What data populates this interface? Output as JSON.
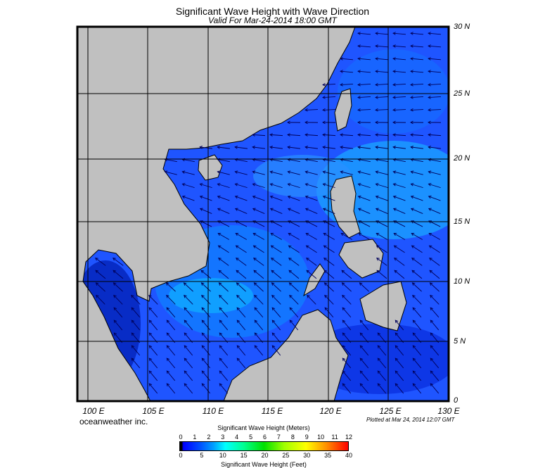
{
  "title": "Significant Wave Height with Wave Direction",
  "subtitle": "Valid For Mar-24-2014 18:00 GMT",
  "lat_labels": [
    "30 N",
    "25 N",
    "20 N",
    "15 N",
    "10 N",
    "5 N",
    "0"
  ],
  "lon_labels": [
    "100 E",
    "105 E",
    "110 E",
    "115 E",
    "120 E",
    "125 E",
    "130 E"
  ],
  "credit": "oceanweather inc.",
  "plotted": "Plotted at Mar 24, 2014 12:07 GMT",
  "colorbar": {
    "title_meters": "Significant Wave Height (Meters)",
    "title_feet": "Significant Wave Height (Feet)",
    "meters": [
      "0",
      "1",
      "2",
      "3",
      "4",
      "5",
      "6",
      "7",
      "8",
      "9",
      "10",
      "11",
      "12"
    ],
    "feet": [
      "0",
      "5",
      "10",
      "15",
      "20",
      "25",
      "30",
      "35",
      "40"
    ]
  },
  "colors": {
    "land": "#c0c0c0",
    "ocean": "#1a4cff",
    "arrow": "#00005a"
  }
}
